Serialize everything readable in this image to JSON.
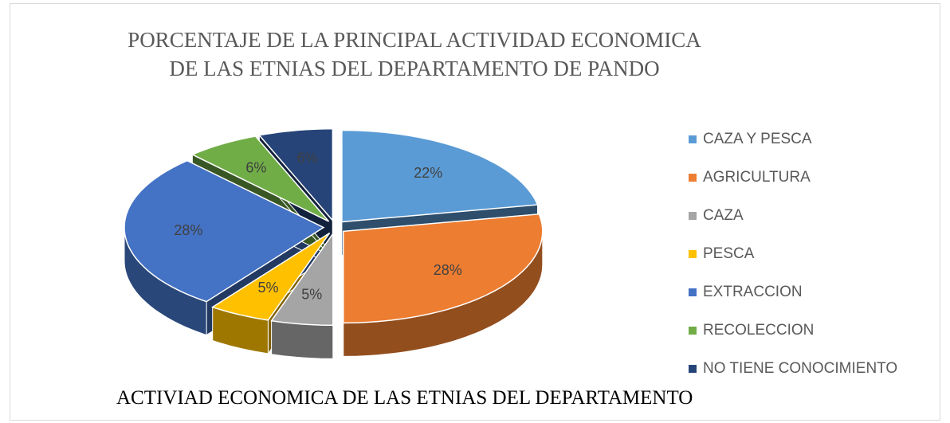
{
  "chart_data": {
    "type": "pie3d",
    "title": "PORCENTAJE DE LA PRINCIPAL ACTIVIDAD ECONOMICA DE LAS ETNIAS DEL DEPARTAMENTO DE PANDO",
    "categories": [
      "CAZA Y PESCA",
      "AGRICULTURA",
      "CAZA",
      "PESCA",
      "EXTRACCION",
      "RECOLECCION",
      "NO TIENE CONOCIMIENTO"
    ],
    "values": [
      22,
      28,
      5,
      5,
      28,
      6,
      6
    ],
    "value_labels": [
      "22%",
      "28%",
      "5%",
      "5%",
      "28%",
      "6%",
      "6%"
    ],
    "colors": [
      "#5b9bd5",
      "#ed7d31",
      "#a5a5a5",
      "#ffc000",
      "#4472c4",
      "#70ad47",
      "#264478"
    ],
    "legend": "right"
  },
  "caption": "ACTIVIAD ECONOMICA DE LAS ETNIAS DEL DEPARTAMENTO"
}
